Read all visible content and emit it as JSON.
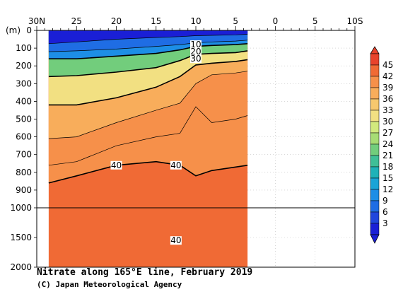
{
  "chart_data": {
    "type": "heatmap",
    "title": "Nitrate along 165°E line, February 2019",
    "credit": "(C) Japan Meteorological Agency",
    "ylabel": "(m)",
    "x_ticks": [
      "30N",
      "25",
      "20",
      "15",
      "10",
      "5",
      "0",
      "5",
      "10S"
    ],
    "x_tick_lat": [
      30,
      25,
      20,
      15,
      10,
      5,
      0,
      -5,
      -10
    ],
    "xlim": [
      30,
      -10
    ],
    "data_extent_lat": [
      28.5,
      3.5
    ],
    "y_ticks": [
      "0",
      "100",
      "200",
      "300",
      "400",
      "500",
      "600",
      "700",
      "800",
      "900",
      "1000",
      "1500",
      "2000"
    ],
    "y_tick_values": [
      0,
      100,
      200,
      300,
      400,
      500,
      600,
      700,
      800,
      900,
      1000,
      1500,
      2000
    ],
    "ylim": [
      0,
      2000
    ],
    "y_scale_break": 1000,
    "colorbar": {
      "labels": [
        "45",
        "42",
        "39",
        "36",
        "33",
        "30",
        "27",
        "24",
        "21",
        "18",
        "15",
        "12",
        "9",
        "6",
        "3"
      ],
      "colors": [
        "#e8432c",
        "#f06a35",
        "#f6904a",
        "#f8ad5b",
        "#f7c86e",
        "#f2e082",
        "#d2e97d",
        "#a7dc74",
        "#72cd7c",
        "#3fbf97",
        "#1fb2b8",
        "#1aa4d6",
        "#1d8ee6",
        "#1f6de4",
        "#2046dc",
        "#1a1fd6"
      ]
    },
    "contour_labels": [
      {
        "text": "10",
        "lat": 10.0,
        "depth": 80
      },
      {
        "text": "20",
        "lat": 10.0,
        "depth": 120
      },
      {
        "text": "30",
        "lat": 10.0,
        "depth": 160
      },
      {
        "text": "40",
        "lat": 20.0,
        "depth": 760
      },
      {
        "text": "40",
        "lat": 12.5,
        "depth": 760
      },
      {
        "text": "40",
        "lat": 12.5,
        "depth": 1550
      }
    ],
    "isolines": [
      {
        "value": 3,
        "lat": [
          28.5,
          25,
          20,
          15,
          12,
          10,
          8,
          5,
          3.5
        ],
        "depth": [
          75,
          65,
          50,
          40,
          35,
          30,
          28,
          25,
          22
        ]
      },
      {
        "value": 6,
        "lat": [
          28.5,
          25,
          20,
          15,
          12,
          10,
          8,
          5,
          3.5
        ],
        "depth": [
          120,
          115,
          105,
          90,
          80,
          70,
          65,
          60,
          55
        ]
      },
      {
        "value": 10,
        "lat": [
          28.5,
          25,
          20,
          15,
          12,
          10,
          8,
          5,
          3.5
        ],
        "depth": [
          160,
          160,
          145,
          130,
          110,
          90,
          85,
          80,
          75
        ]
      },
      {
        "value": 20,
        "lat": [
          28.5,
          25,
          20,
          15,
          12,
          10,
          8,
          5,
          3.5
        ],
        "depth": [
          260,
          255,
          235,
          210,
          170,
          135,
          130,
          125,
          115
        ]
      },
      {
        "value": 30,
        "lat": [
          28.5,
          25,
          20,
          15,
          12,
          10,
          8,
          5,
          3.5
        ],
        "depth": [
          420,
          420,
          380,
          320,
          260,
          195,
          185,
          175,
          165
        ]
      },
      {
        "value": 36,
        "lat": [
          28.5,
          25,
          20,
          15,
          12,
          10,
          8,
          5,
          3.5
        ],
        "depth": [
          610,
          600,
          520,
          450,
          410,
          300,
          250,
          240,
          230
        ]
      },
      {
        "value": 39,
        "lat": [
          28.5,
          25,
          20,
          15,
          12,
          10,
          8,
          5,
          3.5
        ],
        "depth": [
          760,
          740,
          650,
          600,
          580,
          430,
          520,
          500,
          480
        ]
      },
      {
        "value": 40,
        "lat": [
          28.5,
          25,
          20,
          15,
          12,
          10,
          8,
          5,
          3.5
        ],
        "depth": [
          860,
          820,
          760,
          740,
          760,
          820,
          790,
          770,
          760
        ]
      }
    ]
  }
}
